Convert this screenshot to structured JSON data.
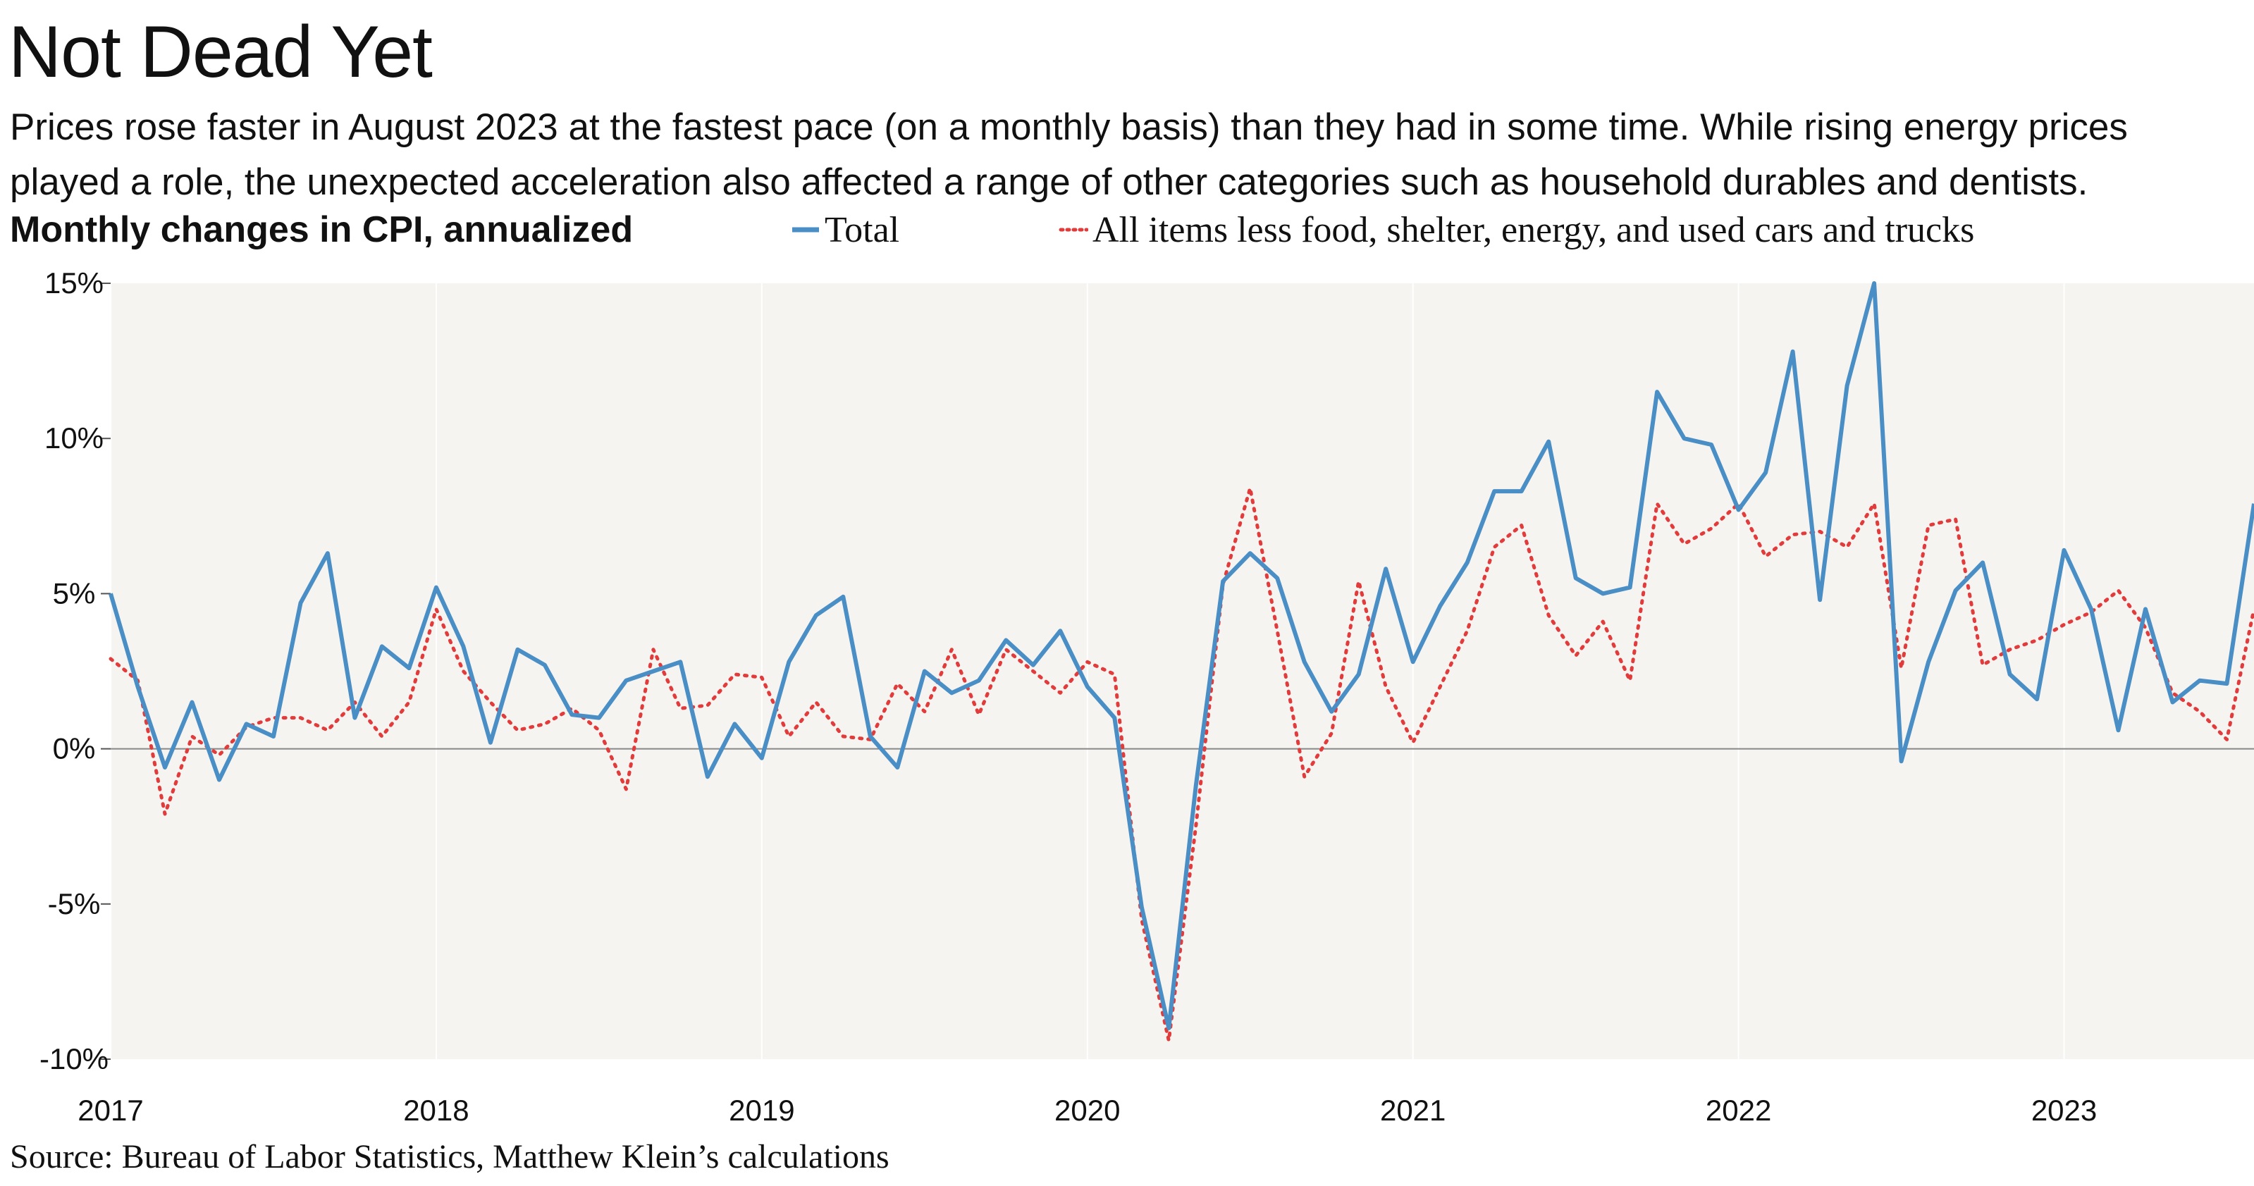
{
  "header": {
    "title": "Not Dead Yet",
    "subtitle": "Prices rose faster in August 2023 at the fastest pace (on a monthly basis) than they had in some time. While rising energy prices played a role, the unexpected acceleration also affected a range of other categories such as household durables and dentists."
  },
  "footer": {
    "source": "Source: Bureau of Labor Statistics, Matthew Klein’s calculations"
  },
  "colors": {
    "total": "#4a8ec6",
    "core": "#e23b3b",
    "plot_background": "#f5f4f1",
    "zero_line": "#888888"
  },
  "chart_data": {
    "type": "line",
    "title": "Monthly changes in CPI, annualized",
    "ylim": [
      -10,
      15
    ],
    "yticks": [
      15,
      10,
      5,
      0,
      -5,
      -10
    ],
    "ytick_labels": [
      "15%",
      "10%",
      "5%",
      "0%",
      "-5%",
      "-10%"
    ],
    "xlim": [
      "2017-01",
      "2023-08"
    ],
    "xticks": [
      "2017",
      "2018",
      "2019",
      "2020",
      "2021",
      "2022",
      "2023"
    ],
    "grid": "vertical lines at year boundaries",
    "legend_position": "top",
    "series": [
      {
        "name": "Total",
        "style": "solid",
        "x_start": "2017-01",
        "frequency": "monthly",
        "values": [
          5.0,
          2.0,
          -0.6,
          1.5,
          -1.0,
          0.8,
          0.4,
          4.7,
          6.3,
          1.0,
          3.3,
          2.6,
          5.2,
          3.3,
          0.2,
          3.2,
          2.7,
          1.1,
          1.0,
          2.2,
          2.5,
          2.8,
          -0.9,
          0.8,
          -0.3,
          2.8,
          4.3,
          4.9,
          0.4,
          -0.6,
          2.5,
          1.8,
          2.2,
          3.5,
          2.7,
          3.8,
          2.0,
          1.0,
          -5.1,
          -9.0,
          -1.2,
          5.4,
          6.3,
          5.5,
          2.8,
          1.2,
          2.4,
          5.8,
          2.8,
          4.6,
          6.0,
          8.3,
          8.3,
          9.9,
          5.5,
          5.0,
          5.2,
          11.5,
          10.0,
          9.8,
          7.7,
          8.9,
          12.8,
          4.8,
          11.7,
          15.0,
          -0.4,
          2.8,
          5.1,
          6.0,
          2.4,
          1.6,
          6.4,
          4.5,
          0.6,
          4.5,
          1.5,
          2.2,
          2.1,
          7.9
        ]
      },
      {
        "name": "All items less food, shelter, energy, and used cars and trucks",
        "style": "dotted",
        "x_start": "2017-01",
        "frequency": "monthly",
        "values": [
          2.9,
          2.2,
          -2.1,
          0.4,
          -0.2,
          0.7,
          1.0,
          1.0,
          0.6,
          1.5,
          0.4,
          1.5,
          4.5,
          2.5,
          1.5,
          0.6,
          0.8,
          1.3,
          0.6,
          -1.3,
          3.2,
          1.3,
          1.4,
          2.4,
          2.3,
          0.4,
          1.5,
          0.4,
          0.3,
          2.1,
          1.2,
          3.2,
          1.1,
          3.2,
          2.5,
          1.8,
          2.8,
          2.4,
          -5.5,
          -9.4,
          -2.5,
          5.3,
          8.4,
          3.8,
          -0.9,
          0.5,
          5.4,
          2.0,
          0.2,
          2.0,
          3.8,
          6.5,
          7.2,
          4.3,
          3.0,
          4.1,
          2.2,
          7.9,
          6.6,
          7.1,
          7.9,
          6.2,
          6.9,
          7.0,
          6.5,
          7.9,
          2.6,
          7.2,
          7.4,
          2.7,
          3.2,
          3.5,
          4.0,
          4.4,
          5.1,
          3.9,
          1.8,
          1.2,
          0.3,
          4.5
        ]
      }
    ]
  }
}
